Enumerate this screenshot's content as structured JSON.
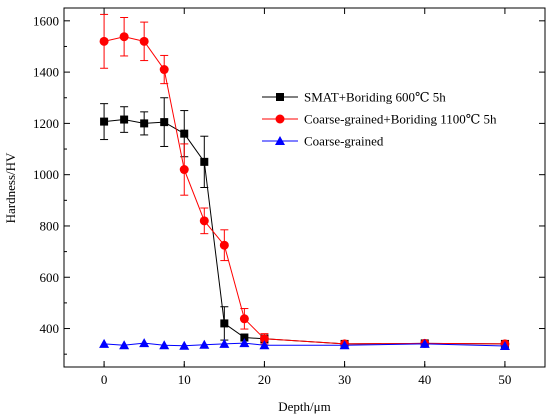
{
  "chart_data": {
    "type": "line",
    "xlabel": "Depth/μm",
    "ylabel": "Hardness/HV",
    "xlim": [
      -5,
      55
    ],
    "ylim": [
      250,
      1650
    ],
    "xticks": [
      0,
      10,
      20,
      30,
      40,
      50
    ],
    "yticks": [
      400,
      600,
      800,
      1000,
      1200,
      1400,
      1600
    ],
    "grid": false,
    "legend_position": "right",
    "series": [
      {
        "name": "SMAT+Boriding 600℃ 5h",
        "color": "#000000",
        "marker": "square",
        "x": [
          0,
          2.5,
          5,
          7.5,
          10,
          12.5,
          15,
          17.5,
          20,
          30,
          40,
          50
        ],
        "y": [
          1207,
          1215,
          1200,
          1205,
          1160,
          1050,
          420,
          365,
          360,
          340,
          342,
          340
        ],
        "err": [
          70,
          50,
          45,
          95,
          90,
          100,
          65,
          0,
          15,
          0,
          0,
          0
        ]
      },
      {
        "name": "Coarse-grained+Boriding 1100℃ 5h",
        "color": "#ff0000",
        "marker": "circle",
        "x": [
          0,
          2.5,
          5,
          7.5,
          10,
          12.5,
          15,
          17.5,
          20,
          30,
          40,
          50
        ],
        "y": [
          1520,
          1538,
          1520,
          1410,
          1020,
          820,
          725,
          438,
          360,
          340,
          342,
          340
        ],
        "err": [
          105,
          75,
          75,
          55,
          100,
          50,
          60,
          40,
          20,
          0,
          0,
          0
        ]
      },
      {
        "name": "Coarse-grained",
        "color": "#0000ff",
        "marker": "triangle",
        "x": [
          0,
          2.5,
          5,
          7.5,
          10,
          12.5,
          15,
          17.5,
          20,
          30,
          40,
          50
        ],
        "y": [
          340,
          335,
          343,
          335,
          333,
          337,
          340,
          343,
          335,
          335,
          340,
          332
        ],
        "err": [
          0,
          0,
          0,
          0,
          0,
          0,
          0,
          0,
          0,
          0,
          0,
          0
        ]
      }
    ]
  }
}
